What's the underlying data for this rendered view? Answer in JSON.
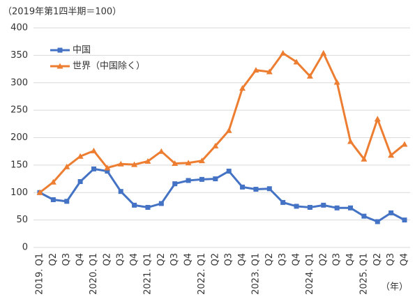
{
  "chart_data": {
    "type": "line",
    "subtitle": "（2019年第1四半期＝100）",
    "x_unit": "（年）",
    "categories": [
      "2019. Q1",
      "Q2",
      "Q3",
      "Q4",
      "2020. Q1",
      "Q2",
      "Q3",
      "Q4",
      "2021. Q1",
      "Q2",
      "Q3",
      "Q4",
      "2022. Q1",
      "Q2",
      "Q3",
      "Q4",
      "2023. Q1",
      "Q2",
      "Q3",
      "Q4",
      "2024. Q1",
      "Q2",
      "Q3",
      "Q4",
      "2025. Q1",
      "Q2",
      "Q3",
      "Q4"
    ],
    "series": [
      {
        "name": "中国",
        "color": "#4472c4",
        "marker": "square",
        "values": [
          100,
          87,
          84,
          120,
          143,
          139,
          102,
          77,
          73,
          80,
          116,
          122,
          124,
          125,
          139,
          110,
          106,
          107,
          82,
          75,
          73,
          77,
          72,
          72,
          57,
          47,
          63,
          50
        ]
      },
      {
        "name": "世界（中国除く）",
        "color": "#ed7d31",
        "marker": "triangle",
        "values": [
          100,
          119,
          147,
          166,
          176,
          145,
          152,
          151,
          157,
          175,
          153,
          154,
          158,
          185,
          213,
          290,
          323,
          320,
          354,
          338,
          312,
          354,
          301,
          193,
          161,
          234,
          168,
          188
        ]
      }
    ],
    "ylim": [
      0,
      400
    ],
    "yticks": [
      0,
      50,
      100,
      150,
      200,
      250,
      300,
      350,
      400
    ],
    "grid": true
  }
}
